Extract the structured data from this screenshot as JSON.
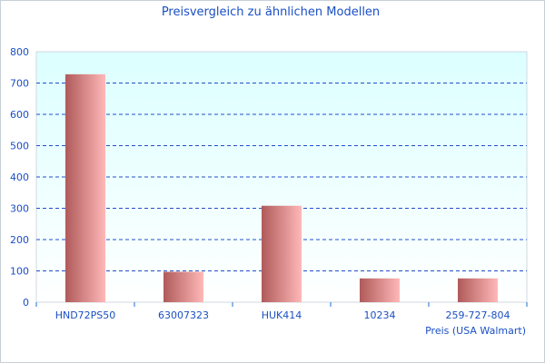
{
  "chart_data": {
    "type": "bar",
    "title": "Preisvergleich zu ähnlichen Modellen",
    "xlabel": "Preis (USA Walmart)",
    "ylabel": "",
    "categories": [
      "HND72PS50",
      "63007323",
      "HUK414",
      "10234",
      "259-727-804"
    ],
    "values": [
      728,
      97,
      308,
      76,
      76
    ],
    "ylim": [
      0,
      800
    ],
    "yticks": [
      0,
      100,
      200,
      300,
      400,
      500,
      600,
      700,
      800
    ],
    "grid": true,
    "colors": {
      "bar_dark": "#b05a5a",
      "bar_light": "#ffb8b8",
      "text": "#1a4fc4",
      "grid": "#2050c8",
      "bg_top": "#dcffff",
      "bg_bottom": "#ffffff"
    }
  }
}
